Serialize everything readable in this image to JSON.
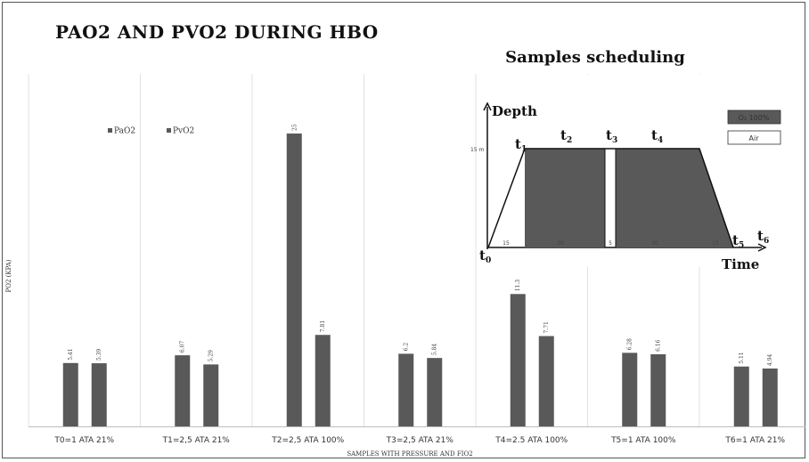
{
  "chart_data": {
    "type": "bar",
    "title": "PAO2 AND PVO2 DURING HBO",
    "xlabel": "SAMPLES WITH PRESSURE AND FIO2",
    "ylabel": "PO2 (KPA)",
    "ylim": [
      0,
      25
    ],
    "grid": "vertical category separators",
    "legend_position": "top-left",
    "categories": [
      "T0=1 ATA 21%",
      "T1=2,5 ATA  21%",
      "T2=2,5 ATA 100%",
      "T3=2,5 ATA  21%",
      "T4=2.5 ATA 100%",
      "T5=1 ATA 100%",
      "T6=1 ATA 21%"
    ],
    "series": [
      {
        "name": "PaO2",
        "values": [
          5.41,
          6.07,
          25,
          6.2,
          11.3,
          6.28,
          5.11
        ],
        "labels": [
          "5.41",
          "6.07",
          "25",
          "6.2",
          "11.3",
          "6.28",
          "5.11"
        ],
        "color": "#595959"
      },
      {
        "name": "PvO2",
        "values": [
          5.39,
          5.29,
          7.81,
          5.84,
          7.71,
          6.16,
          4.94
        ],
        "labels": [
          "5.39",
          "5.29",
          "7.81",
          "5.84",
          "7.71",
          "6.16",
          "4.94"
        ],
        "color": "#595959"
      }
    ]
  },
  "inset": {
    "title": "Samples scheduling",
    "depth_label": "Depth",
    "time_label": "Time",
    "depth_value": "15 m",
    "legend": [
      {
        "label": "O₂ 100%",
        "color": "#595959"
      },
      {
        "label": "Air",
        "color": "#ffffff"
      }
    ],
    "points": [
      {
        "main": "t",
        "sub": "0"
      },
      {
        "main": "t",
        "sub": "1"
      },
      {
        "main": "t",
        "sub": "2"
      },
      {
        "main": "t",
        "sub": "3"
      },
      {
        "main": "t",
        "sub": "4"
      },
      {
        "main": "t",
        "sub": "5"
      },
      {
        "main": "t",
        "sub": "6"
      }
    ],
    "durations": [
      "15",
      "30",
      "5",
      "30",
      "15"
    ]
  }
}
